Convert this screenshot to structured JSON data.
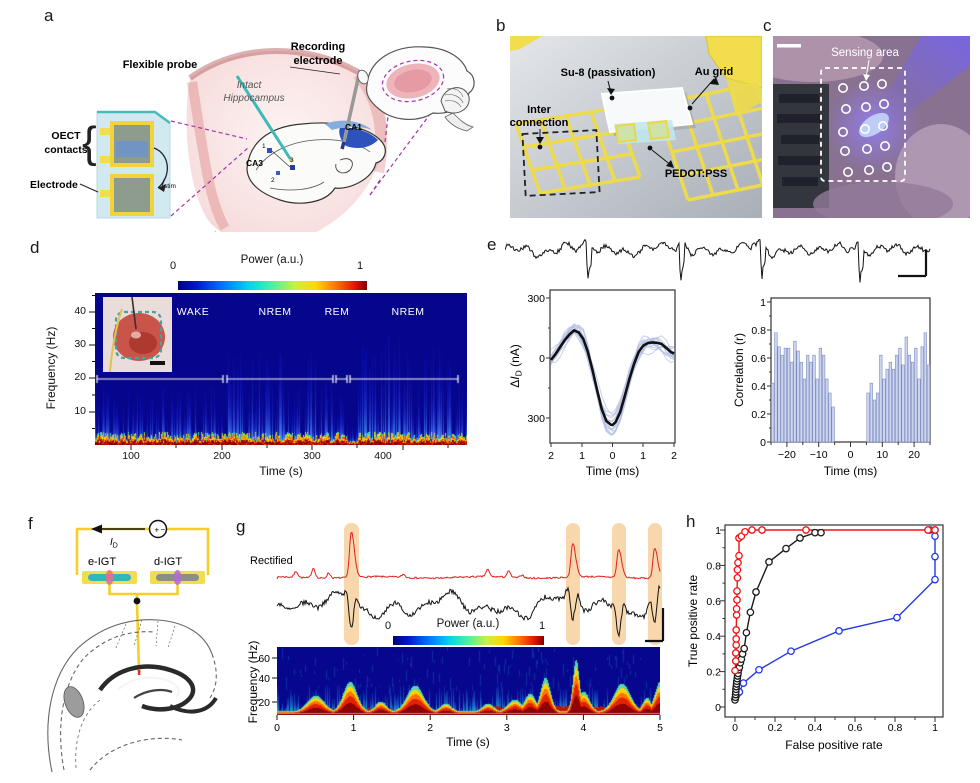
{
  "panel_labels": {
    "a": "a",
    "b": "b",
    "c": "c",
    "d": "d",
    "e": "e",
    "f": "f",
    "g": "g",
    "h": "h"
  },
  "colors": {
    "gold": "#f2dd4e",
    "teal": "#3fb8b8",
    "lavender_bar": "#cdd5ee",
    "red_trace": "#e02020",
    "highlight_band": "#f7d3a4",
    "magenta_dashed": "#a832a8",
    "roc_red": "#f01212",
    "roc_black": "#1a1a1a",
    "roc_blue": "#2238e8"
  },
  "panel_a": {
    "flexible_probe": "Flexible probe",
    "recording_line1": "Recording",
    "recording_line2": "electrode",
    "intact_line1": "Intact",
    "intact_line2": "Hippocampus",
    "oect_line1": "OECT",
    "oect_line2": "contacts",
    "brace": "{",
    "electrode": "Electrode",
    "istim_i": "i",
    "istim_sub": "stim",
    "ca1": "CA1",
    "ca3": "CA3",
    "pt1": "1",
    "pt2": "2",
    "pt3": "3"
  },
  "panel_b": {
    "su8": "Su-8 (passivation)",
    "au_grid": "Au grid",
    "inter_line1": "Inter",
    "inter_line2": "connection",
    "pedot": "PEDOT:PSS"
  },
  "panel_c": {
    "sensing_area": "Sensing area"
  },
  "panel_d": {
    "colorbar_title": "Power (a.u.)",
    "colorbar_min": "0",
    "colorbar_max": "1",
    "ylabel": "Frequency (Hz)",
    "xlabel": "Time (s)",
    "yticks": [
      "40",
      "30",
      "20",
      "10"
    ],
    "xticks": [
      "100",
      "200",
      "300",
      "400"
    ],
    "states": [
      "WAKE",
      "NREM",
      "REM",
      "NREM"
    ]
  },
  "panel_e": {
    "left": {
      "ylabel_delta": "Δ",
      "ylabel_I": "I",
      "ylabel_sub": "D",
      "ylabel_unit": " (nA)",
      "yticks": [
        "300",
        "0",
        "300"
      ],
      "xticks": [
        "2",
        "1",
        "0",
        "1",
        "2"
      ],
      "xlabel": "Time (ms)"
    },
    "right": {
      "ylabel": "Correlation (r)",
      "yticks": [
        "1",
        "0.8",
        "0.6",
        "0.4",
        "0.2",
        "0"
      ],
      "xticks": [
        "−20",
        "−10",
        "0",
        "10",
        "20"
      ],
      "xlabel": "Time (ms)"
    }
  },
  "panel_f": {
    "id_I": "I",
    "id_sub": "D",
    "e_igt": "e-IGT",
    "d_igt": "d-IGT",
    "source_plus": "+",
    "source_minus": "−"
  },
  "panel_g": {
    "rectified": "Rectified",
    "colorbar_title": "Power (a.u.)",
    "colorbar_min": "0",
    "colorbar_max": "1",
    "ylabel": "Frequency (Hz)",
    "xlabel": "Time (s)",
    "yticks": [
      "60",
      "40",
      "20"
    ],
    "xticks": [
      "0",
      "1",
      "2",
      "3",
      "4",
      "5"
    ]
  },
  "panel_h": {
    "ylabel": "True positive rate",
    "xlabel": "False positive rate",
    "yticks": [
      "1",
      "0.8",
      "0.6",
      "0.4",
      "0.2",
      "0"
    ],
    "xticks": [
      "0",
      "0.2",
      "0.4",
      "0.6",
      "0.8",
      "1"
    ]
  },
  "chart_data": [
    {
      "panel": "d",
      "type": "heatmap",
      "xlabel": "Time (s)",
      "ylabel": "Frequency (Hz)",
      "xticks": [
        100,
        200,
        300,
        400
      ],
      "yticks": [
        10,
        20,
        30,
        40
      ],
      "xrange_s": [
        60,
        470
      ],
      "yrange_hz": [
        0,
        46
      ],
      "colorbar": {
        "label": "Power (a.u.)",
        "range": [
          0,
          1
        ]
      },
      "state_epochs": [
        {
          "label": "WAKE",
          "frac": [
            0.005,
            0.345
          ]
        },
        {
          "label": "NREM",
          "frac": [
            0.355,
            0.64
          ]
        },
        {
          "label": "REM",
          "frac": [
            0.648,
            0.678
          ]
        },
        {
          "label": "NREM",
          "frac": [
            0.685,
            0.975
          ]
        }
      ]
    },
    {
      "panel": "e-top",
      "type": "line",
      "description_visible": "raw trace with four sharp downward deflections and scale bar",
      "spike_fracs": [
        0.19,
        0.41,
        0.6,
        0.83
      ]
    },
    {
      "panel": "e-left",
      "type": "line",
      "xlabel": "Time (ms)",
      "ylabel": "ΔID (nA)",
      "xrange": [
        -2,
        2
      ],
      "ytick_labels": [
        "300",
        "0",
        "300"
      ],
      "x": [
        -2,
        -1.85,
        -1.7,
        -1.55,
        -1.4,
        -1.25,
        -1.1,
        -0.95,
        -0.8,
        -0.65,
        -0.5,
        -0.35,
        -0.2,
        -0.05,
        0,
        0.1,
        0.25,
        0.4,
        0.55,
        0.7,
        0.85,
        1.0,
        1.15,
        1.3,
        1.45,
        1.6,
        1.75,
        1.9,
        2.0
      ],
      "y": [
        -10,
        20,
        55,
        90,
        118,
        138,
        128,
        95,
        30,
        -60,
        -160,
        -255,
        -315,
        -334,
        -335,
        -320,
        -270,
        -190,
        -105,
        -30,
        30,
        62,
        75,
        78,
        76,
        70,
        50,
        30,
        22
      ]
    },
    {
      "panel": "e-right",
      "type": "bar",
      "xlabel": "Time (ms)",
      "ylabel": "Correlation (r)",
      "xrange": [
        -25,
        25
      ],
      "ylim": [
        0,
        1
      ],
      "t": [
        -24.5,
        -23.5,
        -22.5,
        -21.5,
        -20.5,
        -19.5,
        -18.5,
        -17.5,
        -16.5,
        -15.5,
        -14.5,
        -13.5,
        -12.5,
        -11.5,
        -10.5,
        -9.5,
        -8.5,
        -7.5,
        -6.5,
        -5.5,
        5.5,
        6.5,
        7.5,
        8.5,
        9.5,
        10.5,
        11.5,
        12.5,
        13.5,
        14.5,
        15.5,
        16.5,
        17.5,
        18.5,
        19.5,
        20.5,
        21.5,
        22.5,
        23.5,
        24.5
      ],
      "r": [
        0.42,
        0.78,
        0.68,
        0.62,
        0.67,
        0.67,
        0.57,
        0.72,
        0.65,
        0.57,
        0.45,
        0.62,
        0.57,
        0.62,
        0.45,
        0.67,
        0.62,
        0.45,
        0.35,
        0.25,
        0.35,
        0.42,
        0.3,
        0.35,
        0.62,
        0.45,
        0.52,
        0.57,
        0.52,
        0.62,
        0.67,
        0.55,
        0.75,
        0.62,
        0.57,
        0.67,
        0.45,
        0.68,
        0.78,
        0.55
      ]
    },
    {
      "panel": "g",
      "type": "heatmap",
      "xlabel": "Time (s)",
      "ylabel": "Frequency (Hz)",
      "xticks": [
        0,
        1,
        2,
        3,
        4,
        5
      ],
      "yticks": [
        20,
        40,
        60
      ],
      "xrange_s": [
        0,
        5
      ],
      "yrange_hz": [
        0,
        70
      ],
      "colorbar": {
        "label": "Power (a.u.)",
        "range": [
          0,
          1
        ]
      },
      "event_times_s": [
        0.97,
        3.86,
        4.46,
        4.93
      ]
    },
    {
      "panel": "h",
      "type": "line",
      "xlabel": "False positive rate",
      "ylabel": "True positive rate",
      "xlim": [
        0,
        1
      ],
      "ylim": [
        0,
        1
      ],
      "series": [
        {
          "name": "red",
          "color": "#f01212",
          "points": [
            [
              0,
              0.205
            ],
            [
              0.004,
              0.26
            ],
            [
              0.004,
              0.305
            ],
            [
              0.006,
              0.35
            ],
            [
              0.006,
              0.385
            ],
            [
              0.006,
              0.435
            ],
            [
              0.008,
              0.52
            ],
            [
              0.008,
              0.555
            ],
            [
              0.01,
              0.605
            ],
            [
              0.01,
              0.655
            ],
            [
              0.012,
              0.73
            ],
            [
              0.012,
              0.775
            ],
            [
              0.015,
              0.815
            ],
            [
              0.02,
              0.855
            ],
            [
              0.02,
              0.955
            ],
            [
              0.032,
              0.965
            ],
            [
              0.05,
              0.99
            ],
            [
              0.085,
              1
            ],
            [
              0.135,
              1
            ],
            [
              0.355,
              1
            ],
            [
              0.965,
              1
            ],
            [
              1,
              1
            ]
          ]
        },
        {
          "name": "black",
          "color": "#1a1a1a",
          "points": [
            [
              0,
              0.04
            ],
            [
              0.002,
              0.055
            ],
            [
              0.003,
              0.07
            ],
            [
              0.004,
              0.085
            ],
            [
              0.005,
              0.1
            ],
            [
              0.006,
              0.115
            ],
            [
              0.008,
              0.13
            ],
            [
              0.009,
              0.145
            ],
            [
              0.011,
              0.16
            ],
            [
              0.013,
              0.175
            ],
            [
              0.015,
              0.19
            ],
            [
              0.018,
              0.21
            ],
            [
              0.022,
              0.225
            ],
            [
              0.027,
              0.25
            ],
            [
              0.032,
              0.27
            ],
            [
              0.038,
              0.3
            ],
            [
              0.046,
              0.33
            ],
            [
              0.057,
              0.42
            ],
            [
              0.077,
              0.535
            ],
            [
              0.105,
              0.65
            ],
            [
              0.17,
              0.82
            ],
            [
              0.255,
              0.895
            ],
            [
              0.325,
              0.955
            ],
            [
              0.4,
              0.985
            ],
            [
              0.43,
              0.985
            ]
          ]
        },
        {
          "name": "blue",
          "color": "#2238e8",
          "points": [
            [
              0,
              0.045
            ],
            [
              0.005,
              0.06
            ],
            [
              0.012,
              0.075
            ],
            [
              0.022,
              0.085
            ],
            [
              0.042,
              0.135
            ],
            [
              0.12,
              0.21
            ],
            [
              0.28,
              0.315
            ],
            [
              0.52,
              0.43
            ],
            [
              0.81,
              0.505
            ],
            [
              1,
              0.72
            ],
            [
              1,
              0.85
            ],
            [
              1,
              0.965
            ],
            [
              1,
              1
            ],
            [
              0.975,
              1
            ]
          ]
        }
      ]
    }
  ]
}
